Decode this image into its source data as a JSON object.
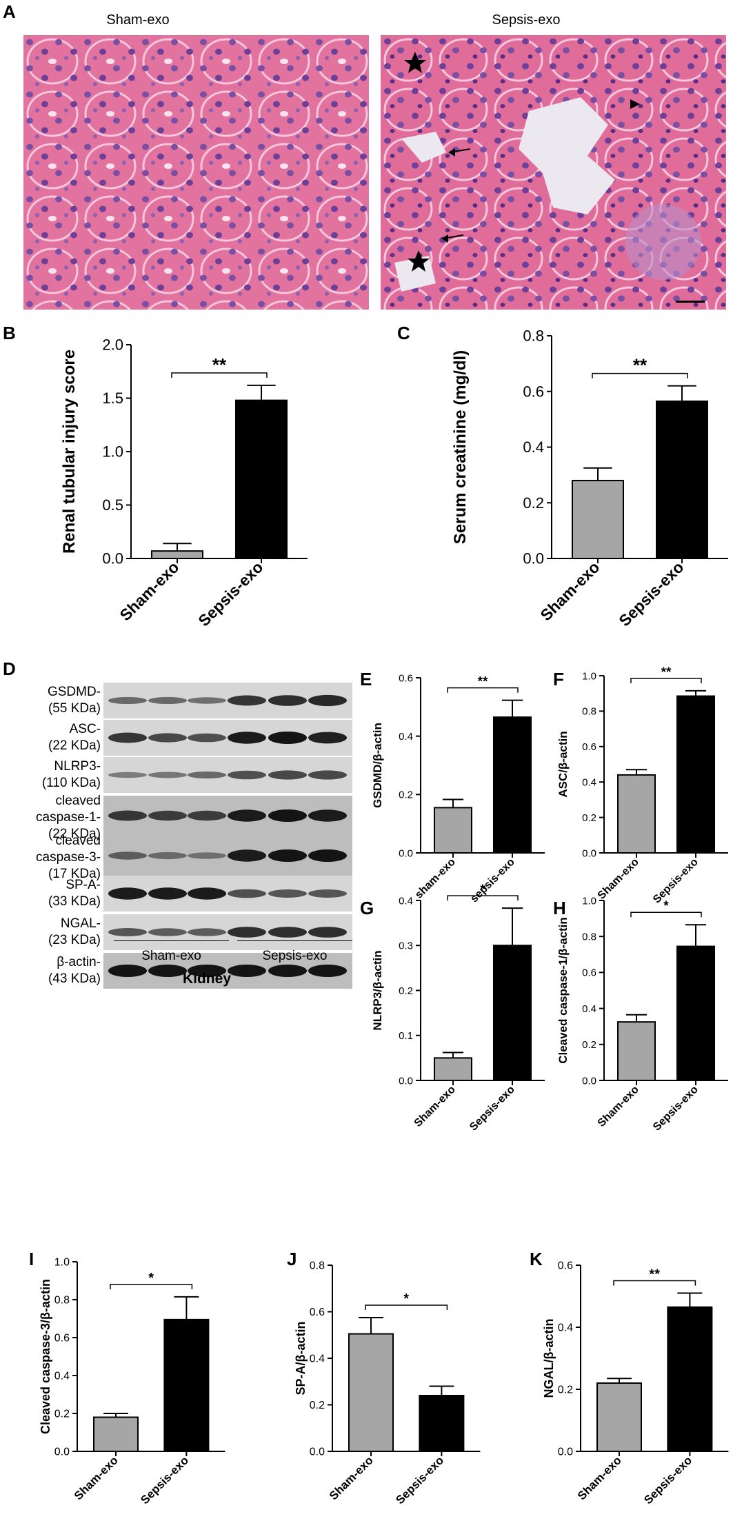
{
  "panel_a": {
    "letter": "A",
    "left_title": "Sham-exo",
    "right_title": "Sepsis-exo"
  },
  "panel_d": {
    "letter": "D",
    "rows": [
      {
        "name": "GSDMD",
        "label": "GSDMD-\n(55 KDa)",
        "intensities": [
          0.35,
          0.35,
          0.3,
          0.75,
          0.8,
          0.85
        ]
      },
      {
        "name": "ASC",
        "label": "ASC-\n(22 KDa)",
        "intensities": [
          0.75,
          0.6,
          0.55,
          0.95,
          1.0,
          0.9
        ]
      },
      {
        "name": "NLRP3",
        "label": "NLRP3-\n(110 KDa)",
        "intensities": [
          0.2,
          0.25,
          0.35,
          0.55,
          0.6,
          0.6
        ]
      },
      {
        "name": "cleaved-caspase-1",
        "label": "cleaved\ncaspase-1-\n(22 KDa)",
        "intensities": [
          0.75,
          0.7,
          0.7,
          0.95,
          1.0,
          0.95
        ]
      },
      {
        "name": "cleaved-caspase-3",
        "label": "cleaved\ncaspase-3-\n(17 KDa)",
        "intensities": [
          0.45,
          0.35,
          0.3,
          0.95,
          1.0,
          1.0
        ]
      },
      {
        "name": "SP-A",
        "label": "SP-A-\n(33 KDa)",
        "intensities": [
          0.95,
          0.95,
          0.95,
          0.55,
          0.5,
          0.5
        ]
      },
      {
        "name": "NGAL",
        "label": "NGAL-\n(23 KDa)",
        "intensities": [
          0.5,
          0.45,
          0.45,
          0.8,
          0.8,
          0.8
        ]
      },
      {
        "name": "beta-actin",
        "label": "β-actin-\n(43 KDa)",
        "intensities": [
          1.0,
          1.0,
          1.0,
          1.0,
          1.0,
          1.0
        ]
      }
    ],
    "group_left": "Sham-exo",
    "group_right": "Sepsis-exo",
    "tissue": "Kidney"
  },
  "chart_data": [
    {
      "id": "B",
      "letter": "B",
      "type": "bar",
      "categories": [
        "Sham-exo",
        "Sepsis-exo"
      ],
      "values": [
        0.07,
        1.48
      ],
      "errors": [
        0.07,
        0.14
      ],
      "ylabel": "Renal tubular injury score",
      "ylim": [
        0,
        2.0
      ],
      "ticks": [
        "0.0",
        "0.5",
        "1.0",
        "1.5",
        "2.0"
      ],
      "significance": "**",
      "colors": [
        "#a6a6a6",
        "#000000"
      ]
    },
    {
      "id": "C",
      "letter": "C",
      "type": "bar",
      "categories": [
        "Sham-exo",
        "Sepsis-exo"
      ],
      "values": [
        0.28,
        0.565
      ],
      "errors": [
        0.045,
        0.055
      ],
      "ylabel": "Serum creatinine (mg/dl)",
      "ylim": [
        0,
        0.8
      ],
      "ticks": [
        "0.0",
        "0.2",
        "0.4",
        "0.6",
        "0.8"
      ],
      "significance": "**",
      "colors": [
        "#a6a6a6",
        "#000000"
      ]
    },
    {
      "id": "E",
      "letter": "E",
      "type": "bar",
      "categories": [
        "sham-exo",
        "sepsis-exo"
      ],
      "values": [
        0.155,
        0.465
      ],
      "errors": [
        0.028,
        0.058
      ],
      "ylabel": "GSDMD/β-actin",
      "ylim": [
        0,
        0.6
      ],
      "ticks": [
        "0.0",
        "0.2",
        "0.4",
        "0.6"
      ],
      "significance": "**",
      "colors": [
        "#a6a6a6",
        "#000000"
      ]
    },
    {
      "id": "F",
      "letter": "F",
      "type": "bar",
      "categories": [
        "Sham-exo",
        "Sepsis-exo"
      ],
      "values": [
        0.44,
        0.885
      ],
      "errors": [
        0.03,
        0.03
      ],
      "ylabel": "ASC/β-actin",
      "ylim": [
        0,
        1.0
      ],
      "ticks": [
        "0.0",
        "0.2",
        "0.4",
        "0.6",
        "0.8",
        "1.0"
      ],
      "significance": "**",
      "colors": [
        "#a6a6a6",
        "#000000"
      ]
    },
    {
      "id": "G",
      "letter": "G",
      "type": "bar",
      "categories": [
        "Sham-exo",
        "Sepsis-exo"
      ],
      "values": [
        0.05,
        0.3
      ],
      "errors": [
        0.012,
        0.083
      ],
      "ylabel": "NLRP3/β-actin",
      "ylim": [
        0,
        0.4
      ],
      "ticks": [
        "0.0",
        "0.1",
        "0.2",
        "0.3",
        "0.4"
      ],
      "significance": "*",
      "colors": [
        "#a6a6a6",
        "#000000"
      ]
    },
    {
      "id": "H",
      "letter": "H",
      "type": "bar",
      "categories": [
        "Sham-exo",
        "Sepsis-exo"
      ],
      "values": [
        0.325,
        0.745
      ],
      "errors": [
        0.04,
        0.12
      ],
      "ylabel": "Cleaved caspase-1/β-actin",
      "ylim": [
        0,
        1.0
      ],
      "ticks": [
        "0.0",
        "0.2",
        "0.4",
        "0.6",
        "0.8",
        "1.0"
      ],
      "significance": "*",
      "colors": [
        "#a6a6a6",
        "#000000"
      ]
    },
    {
      "id": "I",
      "letter": "I",
      "type": "bar",
      "categories": [
        "Sham-exo",
        "Sepsis-exo"
      ],
      "values": [
        0.18,
        0.695
      ],
      "errors": [
        0.02,
        0.12
      ],
      "ylabel": "Cleaved caspase-3/β-actin",
      "ylim": [
        0,
        1.0
      ],
      "ticks": [
        "0.0",
        "0.2",
        "0.4",
        "0.6",
        "0.8",
        "1.0"
      ],
      "significance": "*",
      "colors": [
        "#a6a6a6",
        "#000000"
      ]
    },
    {
      "id": "J",
      "letter": "J",
      "type": "bar",
      "categories": [
        "Sham-exo",
        "Sepsis-exo"
      ],
      "values": [
        0.505,
        0.24
      ],
      "errors": [
        0.07,
        0.04
      ],
      "ylabel": "SP-A/β-actin",
      "ylim": [
        0,
        0.8
      ],
      "ticks": [
        "0.0",
        "0.2",
        "0.4",
        "0.6",
        "0.8"
      ],
      "significance": "*",
      "colors": [
        "#a6a6a6",
        "#000000"
      ]
    },
    {
      "id": "K",
      "letter": "K",
      "type": "bar",
      "categories": [
        "Sham-exo",
        "Sepsis-exo"
      ],
      "values": [
        0.22,
        0.465
      ],
      "errors": [
        0.015,
        0.045
      ],
      "ylabel": "NGAL/β-actin",
      "ylim": [
        0,
        0.6
      ],
      "ticks": [
        "0.0",
        "0.2",
        "0.4",
        "0.6"
      ],
      "significance": "**",
      "colors": [
        "#a6a6a6",
        "#000000"
      ]
    }
  ]
}
